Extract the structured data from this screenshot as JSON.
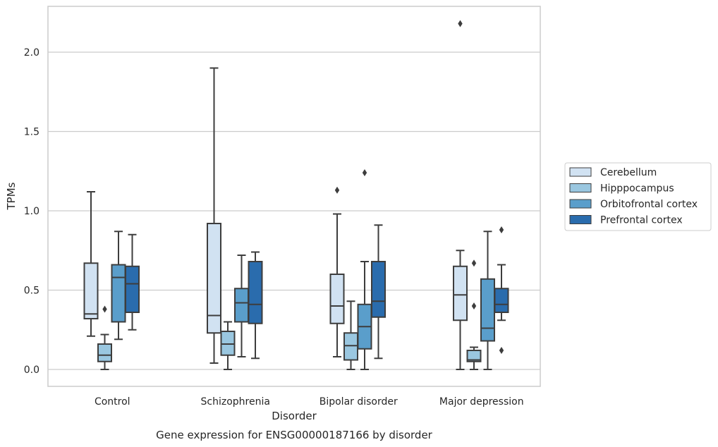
{
  "chart_data": {
    "type": "box",
    "caption": "Gene expression for ENSG00000187166 by disorder",
    "xlabel": "Disorder",
    "ylabel": "TPMs",
    "ylim": [
      -0.1,
      2.3
    ],
    "yticks": [
      0.0,
      0.5,
      1.0,
      1.5,
      2.0
    ],
    "ytick_labels": [
      "0.0",
      "0.5",
      "1.0",
      "1.5",
      "2.0"
    ],
    "grid": "horizontal",
    "legend_position": "right",
    "categories": [
      "Control",
      "Schizophrenia",
      "Bipolar disorder",
      "Major depression"
    ],
    "series": [
      {
        "name": "Cerebellum",
        "color": "#d1e2f2",
        "boxes": [
          {
            "whisker_low": 0.21,
            "q1": 0.32,
            "median": 0.35,
            "q3": 0.67,
            "whisker_high": 1.12,
            "outliers": []
          },
          {
            "whisker_low": 0.04,
            "q1": 0.23,
            "median": 0.34,
            "q3": 0.92,
            "whisker_high": 1.9,
            "outliers": []
          },
          {
            "whisker_low": 0.08,
            "q1": 0.29,
            "median": 0.4,
            "q3": 0.6,
            "whisker_high": 0.98,
            "outliers": [
              1.13
            ]
          },
          {
            "whisker_low": 0.0,
            "q1": 0.31,
            "median": 0.47,
            "q3": 0.65,
            "whisker_high": 0.75,
            "outliers": [
              2.18
            ]
          }
        ]
      },
      {
        "name": "Hipppocampus",
        "color": "#9ac7e0",
        "boxes": [
          {
            "whisker_low": 0.0,
            "q1": 0.05,
            "median": 0.09,
            "q3": 0.16,
            "whisker_high": 0.22,
            "outliers": [
              0.38
            ]
          },
          {
            "whisker_low": 0.0,
            "q1": 0.09,
            "median": 0.16,
            "q3": 0.24,
            "whisker_high": 0.3,
            "outliers": []
          },
          {
            "whisker_low": 0.0,
            "q1": 0.06,
            "median": 0.15,
            "q3": 0.23,
            "whisker_high": 0.43,
            "outliers": []
          },
          {
            "whisker_low": 0.0,
            "q1": 0.05,
            "median": 0.06,
            "q3": 0.12,
            "whisker_high": 0.14,
            "outliers": [
              0.4,
              0.67
            ]
          }
        ]
      },
      {
        "name": "Orbitofrontal cortex",
        "color": "#5a9ecb",
        "boxes": [
          {
            "whisker_low": 0.19,
            "q1": 0.3,
            "median": 0.58,
            "q3": 0.66,
            "whisker_high": 0.87,
            "outliers": []
          },
          {
            "whisker_low": 0.08,
            "q1": 0.3,
            "median": 0.42,
            "q3": 0.51,
            "whisker_high": 0.72,
            "outliers": []
          },
          {
            "whisker_low": 0.0,
            "q1": 0.13,
            "median": 0.27,
            "q3": 0.41,
            "whisker_high": 0.68,
            "outliers": [
              1.24
            ]
          },
          {
            "whisker_low": 0.0,
            "q1": 0.18,
            "median": 0.26,
            "q3": 0.57,
            "whisker_high": 0.87,
            "outliers": []
          }
        ]
      },
      {
        "name": "Prefrontal cortex",
        "color": "#2a6cad",
        "boxes": [
          {
            "whisker_low": 0.25,
            "q1": 0.36,
            "median": 0.54,
            "q3": 0.65,
            "whisker_high": 0.85,
            "outliers": []
          },
          {
            "whisker_low": 0.07,
            "q1": 0.29,
            "median": 0.41,
            "q3": 0.68,
            "whisker_high": 0.74,
            "outliers": []
          },
          {
            "whisker_low": 0.07,
            "q1": 0.33,
            "median": 0.43,
            "q3": 0.68,
            "whisker_high": 0.91,
            "outliers": []
          },
          {
            "whisker_low": 0.31,
            "q1": 0.36,
            "median": 0.41,
            "q3": 0.51,
            "whisker_high": 0.66,
            "outliers": [
              0.12,
              0.88
            ]
          }
        ]
      }
    ],
    "colors": {
      "grid": "#cccccc",
      "frame": "#cccccc",
      "line": "#3d3d3d",
      "text": "#262626"
    }
  }
}
